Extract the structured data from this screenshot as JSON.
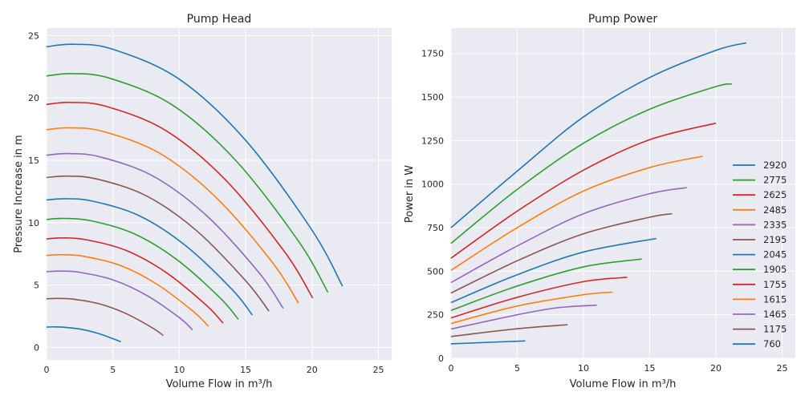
{
  "chart_data": [
    {
      "type": "line",
      "title": "Pump Head",
      "xlabel": "Volume Flow in m³/h",
      "ylabel": "Pressure Increase in m",
      "xlim": [
        0,
        26
      ],
      "ylim": [
        -1,
        25.6
      ],
      "xticks": [
        0,
        5,
        10,
        15,
        20,
        25
      ],
      "yticks": [
        0,
        5,
        10,
        15,
        20,
        25
      ],
      "grid": true,
      "series": [
        {
          "name": "2920",
          "color": "#1f77b4",
          "x": [
            0,
            2,
            5,
            10,
            15,
            20,
            22.3
          ],
          "y": [
            24.1,
            24.3,
            23.9,
            21.5,
            16.6,
            9.4,
            4.9
          ]
        },
        {
          "name": "2775",
          "color": "#2ca02c",
          "x": [
            0,
            1.9,
            4.75,
            9.5,
            14.25,
            19.0,
            21.19
          ],
          "y": [
            21.76,
            21.95,
            21.58,
            19.42,
            14.99,
            8.49,
            4.43
          ]
        },
        {
          "name": "2625",
          "color": "#d62728",
          "x": [
            0,
            1.8,
            4.5,
            8.99,
            13.49,
            17.98,
            20.05
          ],
          "y": [
            19.48,
            19.64,
            19.32,
            17.38,
            13.42,
            7.6,
            3.96
          ]
        },
        {
          "name": "2485",
          "color": "#ff7f0e",
          "x": [
            0,
            1.7,
            4.26,
            8.51,
            12.77,
            17.02,
            18.98
          ],
          "y": [
            17.45,
            17.6,
            17.31,
            15.57,
            12.02,
            6.81,
            3.55
          ]
        },
        {
          "name": "2335",
          "color": "#9467bd",
          "x": [
            0,
            1.6,
            4.0,
            8.0,
            12.0,
            15.99,
            17.83
          ],
          "y": [
            15.41,
            15.54,
            15.28,
            13.75,
            10.62,
            6.01,
            3.13
          ]
        },
        {
          "name": "2195",
          "color": "#8c564b",
          "x": [
            0,
            1.5,
            3.76,
            7.52,
            11.28,
            15.03,
            16.76
          ],
          "y": [
            13.62,
            13.73,
            13.51,
            12.15,
            9.38,
            5.31,
            2.9
          ]
        },
        {
          "name": "2045",
          "color": "#1f77b4",
          "x": [
            0,
            1.4,
            3.5,
            7.0,
            10.5,
            14.01,
            15.5
          ],
          "y": [
            11.82,
            11.92,
            11.72,
            10.55,
            8.14,
            4.61,
            2.6
          ]
        },
        {
          "name": "1905",
          "color": "#2ca02c",
          "x": [
            0,
            1.3,
            3.26,
            6.52,
            9.79,
            13.05,
            14.45
          ],
          "y": [
            10.26,
            10.34,
            10.17,
            9.15,
            7.06,
            4.0,
            2.25
          ]
        },
        {
          "name": "1755",
          "color": "#d62728",
          "x": [
            0,
            1.2,
            3.0,
            6.01,
            9.02,
            12.02,
            13.3
          ],
          "y": [
            8.7,
            8.78,
            8.63,
            7.77,
            6.0,
            3.4,
            1.95
          ]
        },
        {
          "name": "1615",
          "color": "#ff7f0e",
          "x": [
            0,
            1.11,
            2.77,
            5.53,
            8.3,
            11.06,
            12.2
          ],
          "y": [
            7.37,
            7.43,
            7.31,
            6.58,
            5.08,
            2.88,
            1.7
          ]
        },
        {
          "name": "1465",
          "color": "#9467bd",
          "x": [
            0,
            1.0,
            2.51,
            5.02,
            7.53,
            10.03,
            11.0
          ],
          "y": [
            6.07,
            6.12,
            6.02,
            5.41,
            4.18,
            2.37,
            1.4
          ]
        },
        {
          "name": "1175",
          "color": "#8c564b",
          "x": [
            0,
            0.8,
            2.01,
            4.02,
            6.04,
            8.05,
            8.8
          ],
          "y": [
            3.9,
            3.93,
            3.87,
            3.48,
            2.69,
            1.52,
            0.95
          ]
        },
        {
          "name": "760",
          "color": "#1f77b4",
          "x": [
            0,
            0.52,
            1.3,
            2.6,
            3.9,
            5.0,
            5.6
          ],
          "y": [
            1.63,
            1.65,
            1.62,
            1.46,
            1.12,
            0.7,
            0.45
          ]
        }
      ]
    },
    {
      "type": "line",
      "title": "Pump Power",
      "xlabel": "Volume Flow in m³/h",
      "ylabel": "Power in W",
      "xlim": [
        0,
        26
      ],
      "ylim": [
        0,
        1896
      ],
      "xticks": [
        0,
        5,
        10,
        15,
        20,
        25
      ],
      "yticks": [
        0,
        250,
        500,
        750,
        1000,
        1250,
        1500,
        1750
      ],
      "grid": true,
      "legend": "right",
      "series": [
        {
          "name": "2920",
          "color": "#1f77b4",
          "x": [
            0,
            5,
            10,
            15,
            20,
            22.3
          ],
          "y": [
            750,
            1075,
            1386,
            1612,
            1768,
            1811
          ]
        },
        {
          "name": "2775",
          "color": "#2ca02c",
          "x": [
            0,
            5,
            10,
            15,
            20,
            21.2
          ],
          "y": [
            660,
            970,
            1235,
            1430,
            1560,
            1575
          ]
        },
        {
          "name": "2625",
          "color": "#d62728",
          "x": [
            0,
            5,
            10,
            15,
            20
          ],
          "y": [
            575,
            845,
            1080,
            1255,
            1350
          ]
        },
        {
          "name": "2485",
          "color": "#ff7f0e",
          "x": [
            0,
            5,
            10,
            15,
            19
          ],
          "y": [
            505,
            750,
            960,
            1095,
            1160
          ]
        },
        {
          "name": "2335",
          "color": "#9467bd",
          "x": [
            0,
            5,
            10,
            15,
            17.8
          ],
          "y": [
            435,
            645,
            830,
            945,
            980
          ]
        },
        {
          "name": "2195",
          "color": "#8c564b",
          "x": [
            0,
            5,
            10,
            15,
            16.7
          ],
          "y": [
            375,
            560,
            715,
            810,
            830
          ]
        },
        {
          "name": "2045",
          "color": "#1f77b4",
          "x": [
            0,
            5,
            10,
            15.5
          ],
          "y": [
            320,
            480,
            610,
            688
          ]
        },
        {
          "name": "1905",
          "color": "#2ca02c",
          "x": [
            0,
            5,
            10,
            14.4
          ],
          "y": [
            275,
            415,
            525,
            570
          ]
        },
        {
          "name": "1755",
          "color": "#d62728",
          "x": [
            0,
            5,
            10,
            13.3
          ],
          "y": [
            232,
            350,
            440,
            465
          ]
        },
        {
          "name": "1615",
          "color": "#ff7f0e",
          "x": [
            0,
            5,
            10,
            12.2
          ],
          "y": [
            200,
            300,
            365,
            380
          ]
        },
        {
          "name": "1465",
          "color": "#9467bd",
          "x": [
            0,
            5,
            8,
            11
          ],
          "y": [
            168,
            250,
            290,
            305
          ]
        },
        {
          "name": "1175",
          "color": "#8c564b",
          "x": [
            0,
            5,
            8.8
          ],
          "y": [
            125,
            170,
            193
          ]
        },
        {
          "name": "760",
          "color": "#1f77b4",
          "x": [
            0,
            5.6
          ],
          "y": [
            83,
            100
          ]
        }
      ]
    }
  ]
}
